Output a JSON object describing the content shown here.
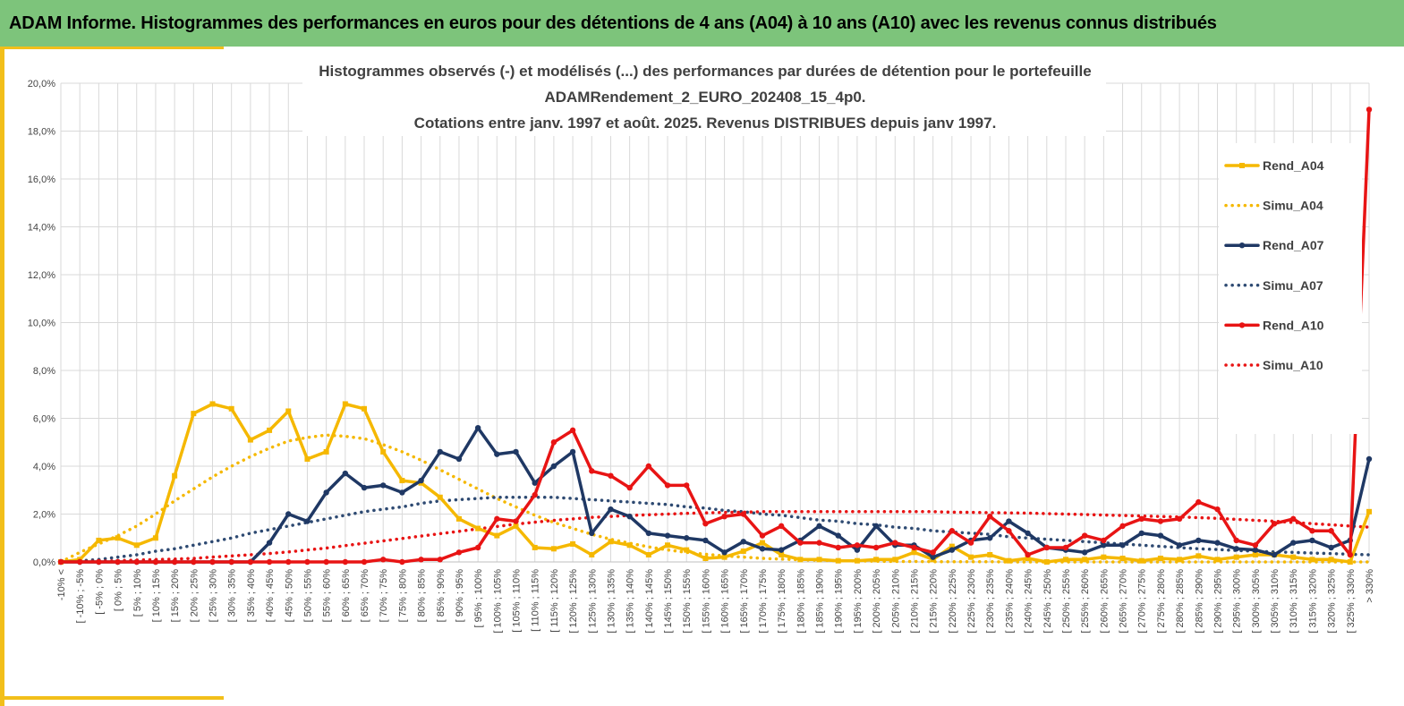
{
  "header": {
    "title": "ADAM Informe. Histogrammes des performances en euros pour des détentions de 4 ans (A04) à 10 ans (A10) avec les revenus connus distribués"
  },
  "colors": {
    "banner": "#7dc47b",
    "frame": "#f2bf1a",
    "grid": "#d9d9d9"
  },
  "chart_data": {
    "type": "line",
    "title": [
      "Histogrammes observés (-) et modélisés (...) des performances par durées de détention pour le portefeuille",
      "ADAMRendement_2_EURO_202408_15_4p0.",
      "Cotations entre janv. 1997 et août. 2025. Revenus DISTRIBUES depuis janv 1997."
    ],
    "xlabel": "",
    "ylabel": "",
    "ylim": [
      0,
      20
    ],
    "yticks": [
      "0,0%",
      "2,0%",
      "4,0%",
      "6,0%",
      "8,0%",
      "10,0%",
      "12,0%",
      "14,0%",
      "16,0%",
      "18,0%",
      "20,0%"
    ],
    "grid": true,
    "legend_position": "right",
    "categories": [
      "-10% <",
      "[ -10% ; -5%",
      "[ -5% ; 0%",
      "[ 0% ; 5%",
      "[ 5% ; 10%",
      "[ 10% ; 15%",
      "[ 15% ; 20%",
      "[ 20% ; 25%",
      "[ 25% ; 30%",
      "[ 30% ; 35%",
      "[ 35% ; 40%",
      "[ 40% ; 45%",
      "[ 45% ; 50%",
      "[ 50% ; 55%",
      "[ 55% ; 60%",
      "[ 60% ; 65%",
      "[ 65% ; 70%",
      "[ 70% ; 75%",
      "[ 75% ; 80%",
      "[ 80% ; 85%",
      "[ 85% ; 90%",
      "[ 90% ; 95%",
      "[ 95% ; 100%",
      "[ 100% ; 105%",
      "[ 105% ; 110%",
      "[ 110% ; 115%",
      "[ 115% ; 120%",
      "[ 120% ; 125%",
      "[ 125% ; 130%",
      "[ 130% ; 135%",
      "[ 135% ; 140%",
      "[ 140% ; 145%",
      "[ 145% ; 150%",
      "[ 150% ; 155%",
      "[ 155% ; 160%",
      "[ 160% ; 165%",
      "[ 165% ; 170%",
      "[ 170% ; 175%",
      "[ 175% ; 180%",
      "[ 180% ; 185%",
      "[ 185% ; 190%",
      "[ 190% ; 195%",
      "[ 195% ; 200%",
      "[ 200% ; 205%",
      "[ 205% ; 210%",
      "[ 210% ; 215%",
      "[ 215% ; 220%",
      "[ 220% ; 225%",
      "[ 225% ; 230%",
      "[ 230% ; 235%",
      "[ 235% ; 240%",
      "[ 240% ; 245%",
      "[ 245% ; 250%",
      "[ 250% ; 255%",
      "[ 255% ; 260%",
      "[ 260% ; 265%",
      "[ 265% ; 270%",
      "[ 270% ; 275%",
      "[ 275% ; 280%",
      "[ 280% ; 285%",
      "[ 285% ; 290%",
      "[ 290% ; 295%",
      "[ 295% ; 300%",
      "[ 300% ; 305%",
      "[ 305% ; 310%",
      "[ 310% ; 315%",
      "[ 315% ; 320%",
      "[ 320% ; 325%",
      "[ 325% ; 330%",
      "> 330%"
    ],
    "series": [
      {
        "name": "Rend_A04",
        "color": "#f5b800",
        "style": "solid",
        "marker": "square",
        "values": [
          0,
          0.1,
          0.9,
          1.0,
          0.7,
          1.0,
          3.6,
          6.2,
          6.6,
          6.4,
          5.1,
          5.5,
          6.3,
          4.3,
          4.6,
          6.6,
          6.4,
          4.6,
          3.4,
          3.3,
          2.7,
          1.8,
          1.4,
          1.1,
          1.5,
          0.6,
          0.55,
          0.75,
          0.3,
          0.85,
          0.7,
          0.3,
          0.7,
          0.5,
          0.15,
          0.2,
          0.45,
          0.8,
          0.3,
          0.1,
          0.1,
          0.05,
          0.05,
          0.1,
          0.1,
          0.4,
          0.1,
          0.65,
          0.2,
          0.3,
          0.05,
          0.15,
          0.0,
          0.1,
          0.1,
          0.2,
          0.15,
          0.05,
          0.15,
          0.1,
          0.25,
          0.1,
          0.2,
          0.3,
          0.3,
          0.2,
          0.1,
          0.1,
          0.0,
          2.1
        ]
      },
      {
        "name": "Simu_A04",
        "color": "#f5b800",
        "style": "dotted",
        "values": [
          0.0,
          0.4,
          0.75,
          1.1,
          1.5,
          2.0,
          2.55,
          3.05,
          3.55,
          4.0,
          4.4,
          4.75,
          5.05,
          5.2,
          5.3,
          5.25,
          5.15,
          4.9,
          4.6,
          4.25,
          3.85,
          3.45,
          3.05,
          2.65,
          2.3,
          1.95,
          1.65,
          1.4,
          1.15,
          0.95,
          0.78,
          0.63,
          0.5,
          0.4,
          0.32,
          0.25,
          0.2,
          0.15,
          0.12,
          0.09,
          0.07,
          0.05,
          0.04,
          0.03,
          0.02,
          0.02,
          0.01,
          0.01,
          0.01,
          0.01,
          0.0,
          0.0,
          0.0,
          0.0,
          0.0,
          0.0,
          0.0,
          0.0,
          0.0,
          0.0,
          0.0,
          0.0,
          0.0,
          0.0,
          0.0,
          0.0,
          0.0,
          0.0,
          0.0,
          0.0
        ]
      },
      {
        "name": "Rend_A07",
        "color": "#1f3864",
        "style": "solid",
        "marker": "circle",
        "values": [
          0,
          0,
          0,
          0,
          0,
          0,
          0,
          0,
          0,
          0,
          0,
          0.8,
          2.0,
          1.7,
          2.9,
          3.7,
          3.1,
          3.2,
          2.9,
          3.4,
          4.6,
          4.3,
          5.6,
          4.5,
          4.6,
          3.3,
          4.0,
          4.6,
          1.2,
          2.2,
          1.9,
          1.2,
          1.1,
          1.0,
          0.9,
          0.4,
          0.85,
          0.55,
          0.5,
          0.9,
          1.5,
          1.1,
          0.5,
          1.5,
          0.7,
          0.7,
          0.2,
          0.5,
          0.9,
          1.0,
          1.7,
          1.2,
          0.6,
          0.5,
          0.4,
          0.7,
          0.7,
          1.2,
          1.1,
          0.7,
          0.9,
          0.8,
          0.55,
          0.5,
          0.3,
          0.8,
          0.9,
          0.6,
          0.9,
          4.3
        ]
      },
      {
        "name": "Simu_A07",
        "color": "#2e4a72",
        "style": "dotted",
        "values": [
          0.0,
          0.05,
          0.1,
          0.2,
          0.3,
          0.45,
          0.55,
          0.7,
          0.85,
          1.0,
          1.2,
          1.35,
          1.5,
          1.65,
          1.8,
          1.95,
          2.1,
          2.2,
          2.3,
          2.45,
          2.55,
          2.6,
          2.65,
          2.7,
          2.7,
          2.7,
          2.7,
          2.65,
          2.6,
          2.55,
          2.5,
          2.45,
          2.4,
          2.3,
          2.25,
          2.15,
          2.1,
          2.0,
          1.95,
          1.85,
          1.75,
          1.7,
          1.6,
          1.55,
          1.45,
          1.4,
          1.3,
          1.25,
          1.2,
          1.15,
          1.05,
          1.0,
          0.95,
          0.9,
          0.85,
          0.8,
          0.75,
          0.7,
          0.65,
          0.6,
          0.55,
          0.52,
          0.48,
          0.45,
          0.42,
          0.4,
          0.37,
          0.35,
          0.32,
          0.3
        ]
      },
      {
        "name": "Rend_A10",
        "color": "#e81414",
        "style": "solid",
        "marker": "circle",
        "values": [
          0,
          0,
          0,
          0,
          0,
          0,
          0,
          0,
          0,
          0,
          0,
          0,
          0,
          0,
          0,
          0,
          0,
          0.1,
          0,
          0.1,
          0.1,
          0.4,
          0.6,
          1.8,
          1.7,
          2.8,
          5.0,
          5.5,
          3.8,
          3.6,
          3.1,
          4.0,
          3.2,
          3.2,
          1.6,
          1.9,
          2.0,
          1.1,
          1.5,
          0.8,
          0.8,
          0.6,
          0.7,
          0.6,
          0.8,
          0.6,
          0.4,
          1.3,
          0.8,
          1.9,
          1.3,
          0.3,
          0.6,
          0.6,
          1.1,
          0.9,
          1.5,
          1.8,
          1.7,
          1.8,
          2.5,
          2.2,
          0.9,
          0.7,
          1.6,
          1.8,
          1.3,
          1.3,
          0.3,
          18.9
        ]
      },
      {
        "name": "Simu_A10",
        "color": "#e81414",
        "style": "dotted",
        "values": [
          0.0,
          0.02,
          0.03,
          0.05,
          0.08,
          0.1,
          0.12,
          0.15,
          0.2,
          0.25,
          0.3,
          0.35,
          0.42,
          0.5,
          0.58,
          0.68,
          0.78,
          0.88,
          0.98,
          1.08,
          1.18,
          1.28,
          1.38,
          1.48,
          1.58,
          1.66,
          1.74,
          1.8,
          1.86,
          1.9,
          1.94,
          1.97,
          2.0,
          2.03,
          2.05,
          2.07,
          2.08,
          2.1,
          2.1,
          2.1,
          2.1,
          2.1,
          2.1,
          2.1,
          2.1,
          2.1,
          2.1,
          2.08,
          2.07,
          2.06,
          2.05,
          2.04,
          2.02,
          2.0,
          1.98,
          1.96,
          1.94,
          1.92,
          1.9,
          1.88,
          1.85,
          1.82,
          1.78,
          1.74,
          1.7,
          1.65,
          1.6,
          1.55,
          1.5,
          1.45
        ]
      }
    ]
  }
}
